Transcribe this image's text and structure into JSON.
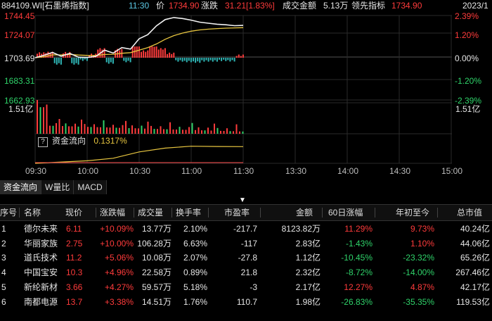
{
  "header": {
    "code_name": "884109.WI[石墨烯指数]",
    "time": "11:30",
    "price_label": "价",
    "price": "1734.90",
    "change_label": "涨跌",
    "change": "31.21[1.83%]",
    "turnover_label": "成交金额",
    "turnover": "5.13万",
    "lead_label": "领先指标",
    "lead": "1734.90",
    "date": "2023/1"
  },
  "chart": {
    "y_left": [
      "1744.45",
      "1724.07",
      "1703.69",
      "1683.31",
      "1662.93"
    ],
    "y_right": [
      "2.39%",
      "1.20%",
      "0.00%",
      "-1.20%",
      "-2.39%"
    ],
    "volume_left": "1.51亿",
    "volume_right": "1.51亿",
    "x_ticks": [
      "09:30",
      "10:00",
      "10:30",
      "11:00",
      "11:30",
      "13:30",
      "14:00",
      "14:30",
      "15:00"
    ],
    "fund_flow_icon": "?",
    "fund_flow_label": "资金流向",
    "fund_flow_value": "0.1317%"
  },
  "chart_data": {
    "type": "line",
    "x_range": [
      "09:30",
      "15:00"
    ],
    "ylim": [
      1662.93,
      1744.45
    ],
    "prev_close": 1703.69,
    "series": [
      {
        "x": [
          "09:30",
          "09:35",
          "09:40",
          "09:45",
          "09:50",
          "09:55",
          "10:00",
          "10:05",
          "10:10",
          "10:15",
          "10:20",
          "10:25",
          "10:30",
          "10:35",
          "10:40",
          "10:45",
          "10:50",
          "10:55",
          "11:00",
          "11:05",
          "11:10",
          "11:15",
          "11:20",
          "11:25",
          "11:30"
        ],
        "values": [
          1703.7,
          1706.0,
          1708.8,
          1705.2,
          1707.8,
          1704.2,
          1703.9,
          1705.0,
          1711.0,
          1708.2,
          1713.5,
          1712.0,
          1722.0,
          1726.0,
          1734.5,
          1740.5,
          1742.5,
          1741.5,
          1740.0,
          1738.0,
          1737.0,
          1736.0,
          1735.5,
          1734.6,
          1734.9
        ]
      },
      {
        "x": [
          "09:30",
          "09:35",
          "09:40",
          "09:45",
          "09:50",
          "09:55",
          "10:00",
          "10:05",
          "10:10",
          "10:15",
          "10:20",
          "10:25",
          "10:30",
          "10:35",
          "10:40",
          "10:45",
          "10:50",
          "10:55",
          "11:00",
          "11:05",
          "11:10",
          "11:15",
          "11:20",
          "11:25",
          "11:30"
        ],
        "values": [
          1703.7,
          1704.6,
          1706.5,
          1706.4,
          1706.8,
          1706.3,
          1705.9,
          1705.8,
          1706.8,
          1707.0,
          1708.0,
          1708.6,
          1711.0,
          1713.5,
          1717.0,
          1721.5,
          1725.0,
          1727.5,
          1729.3,
          1730.5,
          1731.3,
          1731.8,
          1732.2,
          1732.5,
          1732.7
        ]
      }
    ],
    "fund_flow": {
      "x": [
        "09:30",
        "10:00",
        "10:15",
        "10:30",
        "10:45",
        "11:00",
        "11:15",
        "11:30"
      ],
      "values": [
        0.0,
        0.02,
        0.04,
        0.09,
        0.12,
        0.135,
        0.133,
        0.1317
      ]
    }
  },
  "tabs": [
    "资金流向",
    "W量比",
    "MACD"
  ],
  "table": {
    "columns": [
      "序号",
      "名称",
      "现价",
      "涨跌幅",
      "成交量",
      "换手率",
      "市盈率",
      "金额",
      "60日涨幅",
      "年初至今",
      "总市值"
    ],
    "rows": [
      [
        "1",
        "德尔未来",
        "6.11",
        "+10.09%",
        "13.77万",
        "2.10%",
        "-217.7",
        "8123.82万",
        "11.29%",
        "9.73%",
        "40.24亿"
      ],
      [
        "2",
        "华丽家族",
        "2.75",
        "+10.00%",
        "106.28万",
        "6.63%",
        "-117",
        "2.83亿",
        "-1.43%",
        "1.10%",
        "44.06亿"
      ],
      [
        "3",
        "道氏技术",
        "11.2",
        "+5.06%",
        "10.08万",
        "2.07%",
        "-27.8",
        "1.12亿",
        "-10.45%",
        "-23.32%",
        "65.26亿"
      ],
      [
        "4",
        "中国宝安",
        "10.3",
        "+4.96%",
        "22.58万",
        "0.89%",
        "21.8",
        "2.32亿",
        "-8.72%",
        "-14.00%",
        "267.46亿"
      ],
      [
        "5",
        "新纶新材",
        "3.66",
        "+4.27%",
        "59.57万",
        "5.18%",
        "-3",
        "2.17亿",
        "12.27%",
        "4.87%",
        "42.17亿"
      ],
      [
        "6",
        "南都电源",
        "13.7",
        "+3.38%",
        "14.51万",
        "1.76%",
        "110.7",
        "1.98亿",
        "-26.83%",
        "-35.35%",
        "119.53亿"
      ]
    ]
  }
}
